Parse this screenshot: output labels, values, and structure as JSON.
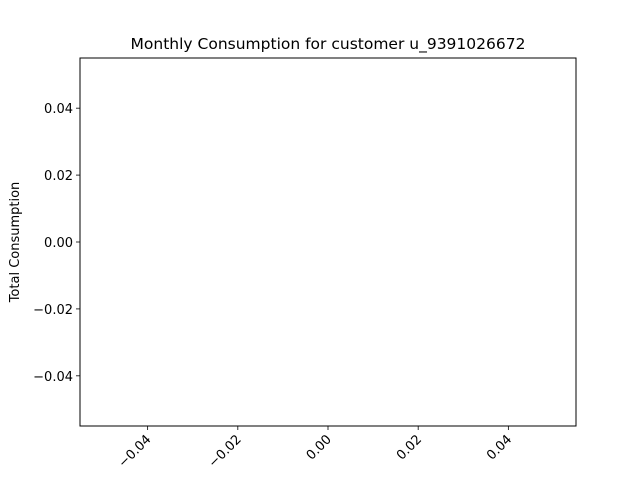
{
  "chart_data": {
    "type": "line",
    "title": "Monthly Consumption for customer u_9391026672",
    "xlabel": "",
    "ylabel": "Total Consumption",
    "x": [],
    "series": [],
    "xlim": [
      -0.055,
      0.055
    ],
    "ylim": [
      -0.055,
      0.055
    ],
    "xticks": [
      -0.04,
      -0.02,
      0.0,
      0.02,
      0.04
    ],
    "xtick_labels": [
      "−0.04",
      "−0.02",
      "0.00",
      "0.02",
      "0.04"
    ],
    "yticks": [
      -0.04,
      -0.02,
      0.0,
      0.02,
      0.04
    ],
    "ytick_labels": [
      "−0.04",
      "−0.02",
      "0.00",
      "0.02",
      "0.04"
    ],
    "xtick_rotation_deg": 45,
    "grid": false,
    "legend": "none"
  }
}
